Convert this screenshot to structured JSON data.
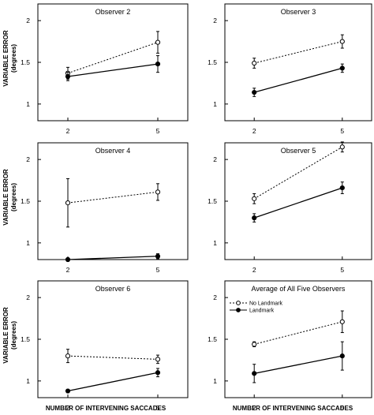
{
  "figure": {
    "xlabel": "NUMBER OF INTERVENING SACCADES",
    "ylabel_line1": "VARIABLE ERROR",
    "ylabel_line2": "(degrees)"
  },
  "chart_data": [
    {
      "type": "line",
      "title": "Observer 2",
      "x": [
        2,
        5
      ],
      "ylim": [
        0.8,
        2.2
      ],
      "yticks": [
        1,
        1.5,
        2
      ],
      "series": [
        {
          "style": "dashed-open",
          "values": [
            1.37,
            1.74
          ],
          "err": [
            0.07,
            0.13
          ]
        },
        {
          "style": "solid-filled",
          "values": [
            1.33,
            1.48
          ],
          "err": [
            0.05,
            0.1
          ]
        }
      ]
    },
    {
      "type": "line",
      "title": "Observer 3",
      "x": [
        2,
        5
      ],
      "ylim": [
        0.8,
        2.2
      ],
      "yticks": [
        1,
        1.5,
        2
      ],
      "series": [
        {
          "style": "dashed-open",
          "values": [
            1.49,
            1.75
          ],
          "err": [
            0.06,
            0.08
          ]
        },
        {
          "style": "solid-filled",
          "values": [
            1.14,
            1.43
          ],
          "err": [
            0.05,
            0.05
          ]
        }
      ]
    },
    {
      "type": "line",
      "title": "Observer 4",
      "x": [
        2,
        5
      ],
      "ylim": [
        0.8,
        2.2
      ],
      "yticks": [
        1,
        1.5,
        2
      ],
      "series": [
        {
          "style": "dashed-open",
          "values": [
            1.48,
            1.61
          ],
          "err": [
            0.29,
            0.1
          ]
        },
        {
          "style": "solid-filled",
          "values": [
            0.8,
            0.84
          ],
          "err": [
            0.02,
            0.03
          ]
        }
      ]
    },
    {
      "type": "line",
      "title": "Observer 5",
      "x": [
        2,
        5
      ],
      "ylim": [
        0.8,
        2.2
      ],
      "yticks": [
        1,
        1.5,
        2
      ],
      "series": [
        {
          "style": "dashed-open",
          "values": [
            1.53,
            2.15
          ],
          "err": [
            0.06,
            0.06
          ]
        },
        {
          "style": "solid-filled",
          "values": [
            1.3,
            1.66
          ],
          "err": [
            0.05,
            0.07
          ]
        }
      ]
    },
    {
      "type": "line",
      "title": "Observer 6",
      "x": [
        2,
        5
      ],
      "ylim": [
        0.8,
        2.2
      ],
      "yticks": [
        1,
        1.5,
        2
      ],
      "series": [
        {
          "style": "dashed-open",
          "values": [
            1.3,
            1.26
          ],
          "err": [
            0.08,
            0.05
          ]
        },
        {
          "style": "solid-filled",
          "values": [
            0.88,
            1.1
          ],
          "err": [
            0.02,
            0.05
          ]
        }
      ]
    },
    {
      "type": "line",
      "title": "Average of All Five Observers",
      "x": [
        2,
        5
      ],
      "ylim": [
        0.8,
        2.2
      ],
      "yticks": [
        1,
        1.5,
        2
      ],
      "legend": "top-left",
      "series": [
        {
          "name": "No Landmark",
          "style": "dashed-open",
          "values": [
            1.44,
            1.71
          ],
          "err": [
            0.03,
            0.13
          ]
        },
        {
          "name": "Landmark",
          "style": "solid-filled",
          "values": [
            1.09,
            1.3
          ],
          "err": [
            0.11,
            0.17
          ]
        }
      ]
    }
  ]
}
